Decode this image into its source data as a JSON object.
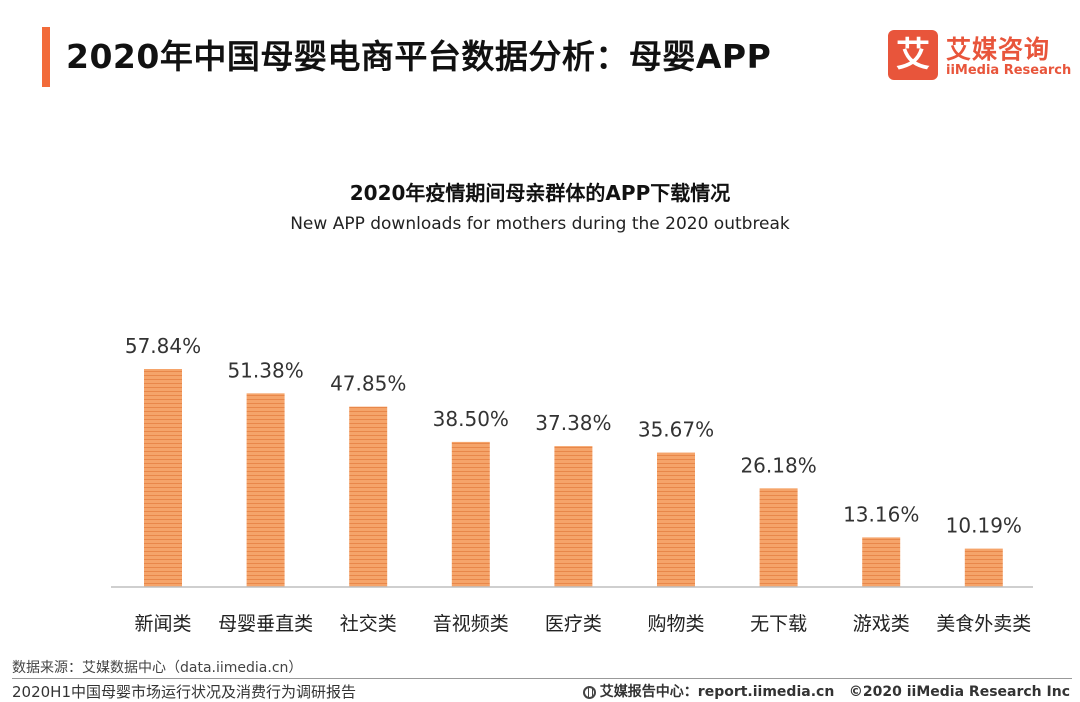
{
  "header": {
    "title": "2020年中国母婴电商平台数据分析：母婴APP",
    "accent_color": "#f26b3a"
  },
  "logo": {
    "mark": "艾",
    "name_cn": "艾媒咨询",
    "name_en": "iiMedia Research",
    "color": "#e8553b"
  },
  "chart_data": {
    "type": "bar",
    "title": "2020年疫情期间母亲群体的APP下载情况",
    "subtitle": "New APP downloads for mothers during the 2020 outbreak",
    "categories": [
      "新闻类",
      "母婴垂直类",
      "社交类",
      "音视频类",
      "医疗类",
      "购物类",
      "无下载",
      "游戏类",
      "美食外卖类"
    ],
    "values": [
      57.84,
      51.38,
      47.85,
      38.5,
      37.38,
      35.67,
      26.18,
      13.16,
      10.19
    ],
    "value_labels": [
      "57.84%",
      "51.38%",
      "47.85%",
      "38.50%",
      "37.38%",
      "35.67%",
      "26.18%",
      "13.16%",
      "10.19%"
    ],
    "unit": "%",
    "bar_color": "#f5a46a",
    "bar_stripe_color": "#e8874a",
    "grid": false,
    "legend": "none"
  },
  "footer": {
    "source": "数据来源：艾媒数据中心（data.iimedia.cn）",
    "report_name": "2020H1中国母婴市场运行状况及消费行为调研报告",
    "report_center": "艾媒报告中心：report.iimedia.cn",
    "copyright": "©2020  iiMedia Research  Inc"
  }
}
